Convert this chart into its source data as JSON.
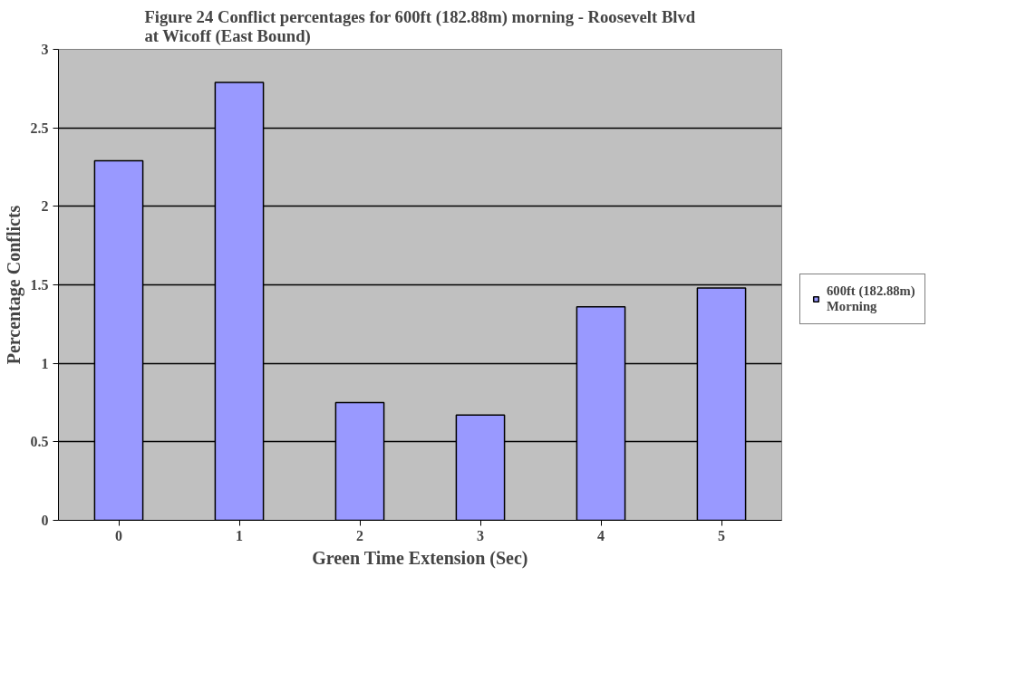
{
  "chart_data": {
    "type": "bar",
    "title": "Figure 24 Conflict percentages for 600ft (182.88m) morning - Roosevelt Blvd\nat Wicoff (East Bound)",
    "xlabel": "Green Time Extension (Sec)",
    "ylabel": "Percentage Conflicts",
    "categories": [
      "0",
      "1",
      "2",
      "3",
      "4",
      "5"
    ],
    "series": [
      {
        "name": "600ft (182.88m)\nMorning",
        "color": "#9999ff",
        "values": [
          2.29,
          2.79,
          0.75,
          0.67,
          1.36,
          1.48
        ]
      }
    ],
    "ylim": [
      0,
      3
    ],
    "yticks": [
      0,
      0.5,
      1,
      1.5,
      2,
      2.5,
      3
    ],
    "grid": "y",
    "legend": "right"
  }
}
